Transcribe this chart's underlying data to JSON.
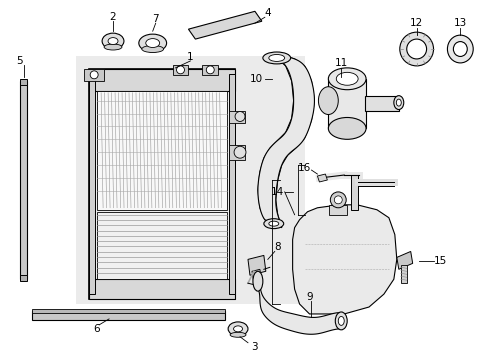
{
  "bg_color": "#ffffff",
  "line_color": "#000000",
  "gray_fill": "#e8e8e8",
  "gray_dark": "#cccccc",
  "gray_light": "#f2f2f2",
  "fig_width": 4.89,
  "fig_height": 3.6,
  "dpi": 100
}
